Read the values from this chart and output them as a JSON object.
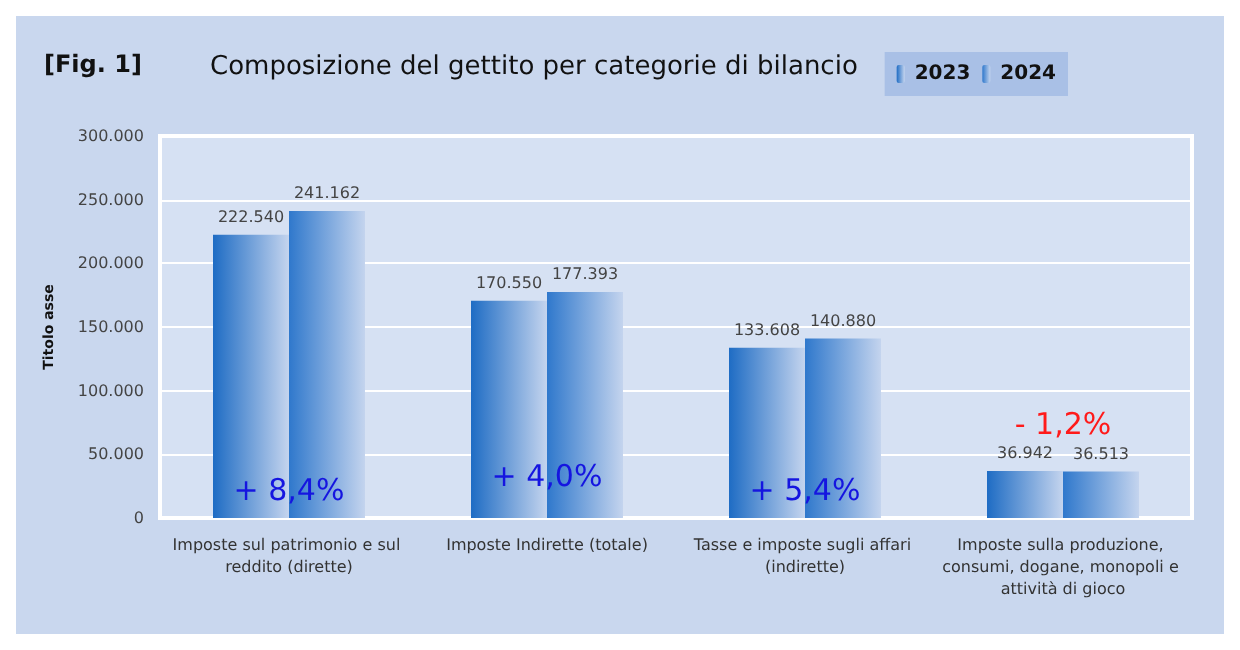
{
  "chart_data": {
    "type": "bar",
    "title": "Composizione del gettito per categorie di bilancio",
    "ylabel": "Titolo asse",
    "categories": [
      "Imposte sul patrimonio e sul reddito (dirette)",
      "Imposte Indirette (totale)",
      "Tasse e imposte sugli affari (indirette)",
      "Imposte sulla produzione, consumi, dogane, monopoli e attività di gioco"
    ],
    "series": [
      {
        "name": "2023",
        "color": "#1e6cc4",
        "values": [
          222540,
          170550,
          133608,
          36942
        ],
        "value_labels": [
          "222.540",
          "170.550",
          "133.608",
          "36.942"
        ]
      },
      {
        "name": "2024",
        "color": "#2f78cc",
        "values": [
          241162,
          177393,
          140880,
          36513
        ],
        "value_labels": [
          "241.162",
          "177.393",
          "140.880",
          "36.513"
        ]
      }
    ],
    "ylim": [
      0,
      300000
    ],
    "yticks": [
      {
        "value": 0,
        "label": "0"
      },
      {
        "value": 50000,
        "label": "50.000"
      },
      {
        "value": 100000,
        "label": "100.000"
      },
      {
        "value": 150000,
        "label": "150.000"
      },
      {
        "value": 200000,
        "label": "200.000"
      },
      {
        "value": 250000,
        "label": "250.000"
      },
      {
        "value": 300000,
        "label": "300.000"
      }
    ],
    "grid": "y",
    "legend": "top right",
    "annotations": [
      "[Fig. 1]",
      "+ 8,4%",
      "+ 4,0%",
      "+ 5,4%",
      "- 1,2%"
    ]
  }
}
